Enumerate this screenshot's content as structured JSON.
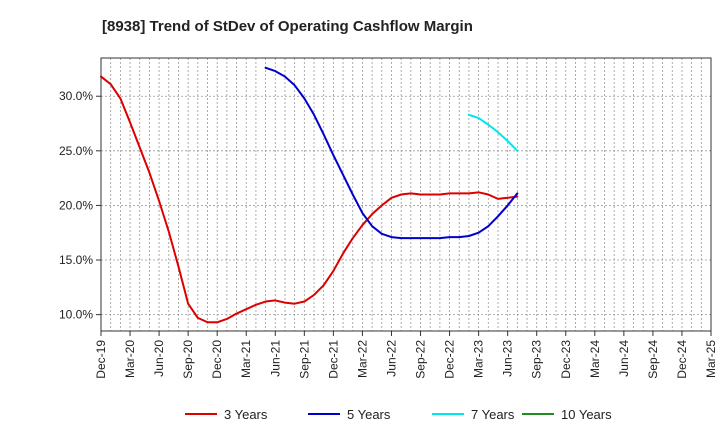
{
  "chart_data": {
    "type": "line",
    "title": "[8938]  Trend of StDev of Operating Cashflow Margin",
    "xlabel": "",
    "ylabel": "",
    "ylim": [
      8.5,
      33.5
    ],
    "yticks": [
      10,
      15,
      20,
      25,
      30
    ],
    "ytick_labels": [
      "10.0%",
      "15.0%",
      "20.0%",
      "25.0%",
      "30.0%"
    ],
    "xticks": [
      "Dec-19",
      "Mar-20",
      "Jun-20",
      "Sep-20",
      "Dec-20",
      "Mar-21",
      "Jun-21",
      "Sep-21",
      "Dec-21",
      "Mar-22",
      "Jun-22",
      "Sep-22",
      "Dec-22",
      "Mar-23",
      "Jun-23",
      "Sep-23",
      "Dec-23",
      "Mar-24",
      "Jun-24",
      "Sep-24",
      "Dec-24",
      "Mar-25"
    ],
    "grid": true,
    "legend_position": "bottom",
    "series": [
      {
        "name": "3 Years",
        "color": "#dd0000",
        "values": [
          31.8,
          31.1,
          29.8,
          27.6,
          25.3,
          23.0,
          20.4,
          17.6,
          14.4,
          11.0,
          9.7,
          9.3,
          9.3,
          9.6,
          10.1,
          10.5,
          10.9,
          11.2,
          11.3,
          11.1,
          11.0,
          11.2,
          11.8,
          12.7,
          14.0,
          15.6,
          17.0,
          18.2,
          19.2,
          20.0,
          20.7,
          21.0,
          21.1,
          21.0,
          21.0,
          21.0,
          21.1,
          21.1,
          21.1,
          21.2,
          21.0,
          20.6,
          20.7,
          20.8
        ]
      },
      {
        "name": "5 Years",
        "color": "#0000cc",
        "values": [
          null,
          null,
          null,
          null,
          null,
          null,
          null,
          null,
          null,
          null,
          null,
          null,
          null,
          null,
          null,
          null,
          null,
          32.6,
          32.3,
          31.8,
          31.0,
          29.8,
          28.3,
          26.5,
          24.6,
          22.8,
          21.0,
          19.3,
          18.1,
          17.4,
          17.1,
          17.0,
          17.0,
          17.0,
          17.0,
          17.0,
          17.1,
          17.1,
          17.2,
          17.5,
          18.1,
          19.0,
          20.0,
          21.1
        ]
      },
      {
        "name": "7 Years",
        "color": "#00e5ee",
        "values": [
          null,
          null,
          null,
          null,
          null,
          null,
          null,
          null,
          null,
          null,
          null,
          null,
          null,
          null,
          null,
          null,
          null,
          null,
          null,
          null,
          null,
          null,
          null,
          null,
          null,
          null,
          null,
          null,
          null,
          null,
          null,
          null,
          null,
          null,
          null,
          null,
          null,
          null,
          28.3,
          28.0,
          27.4,
          26.7,
          25.9,
          25.0
        ]
      },
      {
        "name": "10 Years",
        "color": "#228b22",
        "values": []
      }
    ]
  }
}
